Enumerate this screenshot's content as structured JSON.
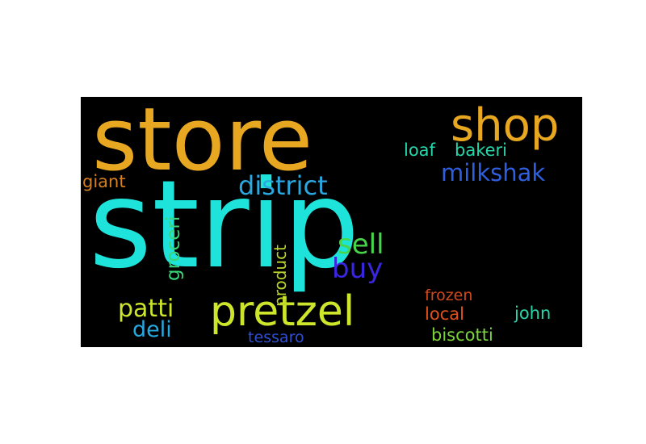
{
  "words": [
    {
      "key": "strip",
      "text": "strip",
      "color": "#1ee3da"
    },
    {
      "key": "store",
      "text": "store",
      "color": "#e8a721"
    },
    {
      "key": "shop",
      "text": "shop",
      "color": "#e8a721"
    },
    {
      "key": "pretzel",
      "text": "pretzel",
      "color": "#cde62b"
    },
    {
      "key": "milkshak",
      "text": "milkshak",
      "color": "#2e5fe0"
    },
    {
      "key": "district",
      "text": "district",
      "color": "#2ba8e0"
    },
    {
      "key": "sell",
      "text": "sell",
      "color": "#47d64a"
    },
    {
      "key": "buy",
      "text": "buy",
      "color": "#3a26e0"
    },
    {
      "key": "patti",
      "text": "patti",
      "color": "#cde62b"
    },
    {
      "key": "deli",
      "text": "deli",
      "color": "#27a9e2"
    },
    {
      "key": "loaf",
      "text": "loaf",
      "color": "#27d6ab"
    },
    {
      "key": "bakeri",
      "text": "bakeri",
      "color": "#27d6ab"
    },
    {
      "key": "giant",
      "text": "giant",
      "color": "#d4801f"
    },
    {
      "key": "frozen",
      "text": "frozen",
      "color": "#d2481a"
    },
    {
      "key": "local",
      "text": "local",
      "color": "#e0521c"
    },
    {
      "key": "john",
      "text": "john",
      "color": "#27d6ab"
    },
    {
      "key": "biscotti",
      "text": "biscotti",
      "color": "#7bd43a"
    },
    {
      "key": "tessaro",
      "text": "tessaro",
      "color": "#2d4fd8"
    },
    {
      "key": "groceri",
      "text": "groceri",
      "color": "#3ad47a"
    },
    {
      "key": "product",
      "text": "product",
      "color": "#b9d52a"
    }
  ]
}
